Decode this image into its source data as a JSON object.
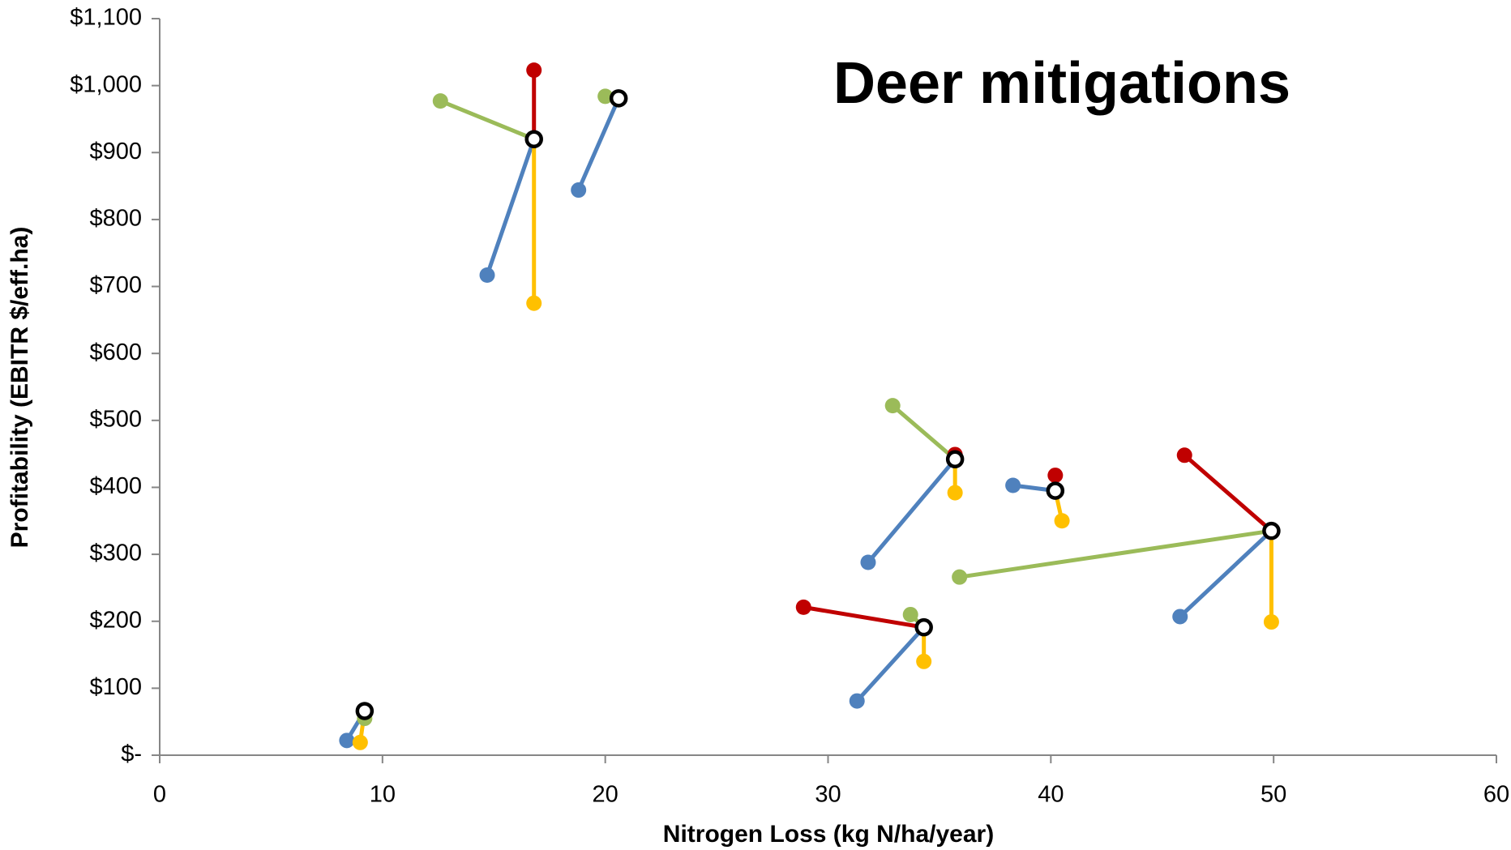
{
  "chart_data": {
    "type": "scatter",
    "title": "Deer mitigations",
    "x_label": "Nitrogen Loss (kg N/ha/year)",
    "y_label": "Profitability (EBITR $/eff.ha)",
    "xlim": [
      0,
      60
    ],
    "xticks": [
      0,
      10,
      20,
      30,
      40,
      50,
      60
    ],
    "ylim": [
      0,
      1100
    ],
    "yticks": [
      {
        "value": 0,
        "label": "$-"
      },
      {
        "value": 100,
        "label": "$100"
      },
      {
        "value": 200,
        "label": "$200"
      },
      {
        "value": 300,
        "label": "$300"
      },
      {
        "value": 400,
        "label": "$400"
      },
      {
        "value": 500,
        "label": "$500"
      },
      {
        "value": 600,
        "label": "$600"
      },
      {
        "value": 700,
        "label": "$700"
      },
      {
        "value": 800,
        "label": "$800"
      },
      {
        "value": 900,
        "label": "$900"
      },
      {
        "value": 1000,
        "label": "$1,000"
      },
      {
        "value": 1100,
        "label": "$1,100"
      }
    ],
    "grid": false,
    "baseline": {
      "color": "#000000",
      "x": [
        16.8,
        20.6,
        35.7,
        40.2,
        49.9,
        34.3,
        9.2
      ],
      "values": [
        920,
        981,
        442,
        395,
        335,
        191,
        66
      ]
    },
    "series": [
      {
        "color": "#c00000",
        "x": [
          16.8,
          20.6,
          35.7,
          40.2,
          46.0,
          28.9,
          9.2
        ],
        "values": [
          1023,
          981,
          449,
          418,
          448,
          221,
          62
        ]
      },
      {
        "color": "#9bbb59",
        "x": [
          12.6,
          20.0,
          32.9,
          null,
          35.9,
          33.7,
          9.2
        ],
        "values": [
          977,
          984,
          522,
          null,
          266,
          210,
          55
        ]
      },
      {
        "color": "#4f81bd",
        "x": [
          14.7,
          18.8,
          31.8,
          38.3,
          45.8,
          31.3,
          8.4
        ],
        "values": [
          717,
          844,
          288,
          403,
          207,
          81,
          22
        ]
      },
      {
        "color": "#ffc000",
        "x": [
          16.8,
          null,
          35.7,
          40.5,
          49.9,
          34.3,
          9.0
        ],
        "values": [
          675,
          null,
          392,
          350,
          199,
          140,
          19
        ]
      }
    ]
  }
}
